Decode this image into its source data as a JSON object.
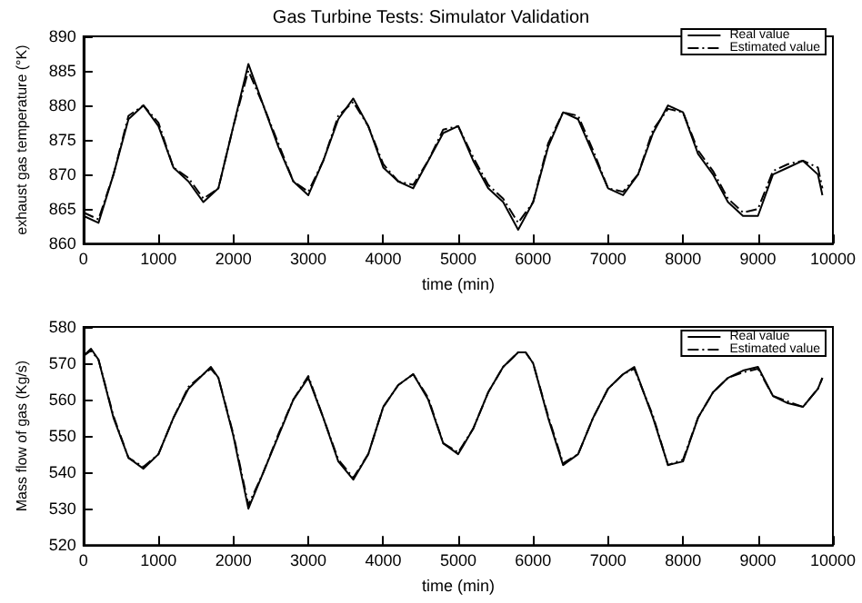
{
  "chart_data": [
    {
      "type": "line",
      "title": "Gas Turbine Tests: Simulator Validation",
      "xlabel": "time (min)",
      "ylabel": "exhaust gas temperature (°K)",
      "x": [
        0,
        200,
        400,
        600,
        800,
        1000,
        1200,
        1400,
        1600,
        1800,
        2000,
        2200,
        2400,
        2600,
        2800,
        3000,
        3200,
        3400,
        3600,
        3800,
        4000,
        4200,
        4400,
        4600,
        4800,
        5000,
        5200,
        5400,
        5600,
        5800,
        6000,
        6200,
        6400,
        6600,
        6800,
        7000,
        7200,
        7400,
        7600,
        7800,
        8000,
        8200,
        8400,
        8600,
        8800,
        9000,
        9200,
        9400,
        9600,
        9800,
        9860
      ],
      "series": [
        {
          "name": "Real value",
          "color": "#000000",
          "line_style": "solid",
          "values": [
            864,
            863,
            870,
            878,
            880,
            877,
            871,
            869,
            866,
            868,
            877,
            886,
            880,
            874,
            869,
            867,
            872,
            878,
            881,
            877,
            871,
            869,
            868,
            872,
            876,
            877,
            872,
            868,
            866,
            862,
            866,
            874,
            879,
            878,
            873,
            868,
            867,
            870,
            876,
            880,
            879,
            873,
            870,
            866,
            864,
            864,
            870,
            871,
            872,
            870,
            867
          ]
        },
        {
          "name": "Estimated value",
          "color": "#000000",
          "line_style": "dashed",
          "values": [
            864.5,
            863.5,
            870,
            878.5,
            880,
            877.5,
            871,
            869.5,
            866.5,
            868,
            877,
            885,
            880,
            874.5,
            869,
            867.5,
            872,
            878.5,
            880.5,
            877,
            871.5,
            869,
            868.5,
            872,
            876.5,
            877,
            872.5,
            868.5,
            866.5,
            863,
            866,
            874.5,
            879,
            878.5,
            873.5,
            868,
            867.5,
            870,
            876.5,
            879.5,
            879,
            873.5,
            870.5,
            866.5,
            864.5,
            865,
            870.5,
            871.5,
            872,
            871,
            868
          ]
        }
      ],
      "xlim": [
        0,
        10000
      ],
      "xticks": [
        0,
        1000,
        2000,
        3000,
        4000,
        5000,
        6000,
        7000,
        8000,
        9000,
        10000
      ],
      "ylim": [
        860,
        890
      ],
      "yticks": [
        860,
        865,
        870,
        875,
        880,
        885,
        890
      ],
      "grid": false,
      "legend": "top right",
      "marker": "none"
    },
    {
      "type": "line",
      "xlabel": "time (min)",
      "ylabel": "Mass flow of gas (Kg/s)",
      "x": [
        0,
        100,
        200,
        400,
        600,
        800,
        1000,
        1200,
        1400,
        1600,
        1700,
        1800,
        2000,
        2200,
        2400,
        2600,
        2800,
        3000,
        3200,
        3400,
        3600,
        3800,
        4000,
        4200,
        4400,
        4600,
        4800,
        5000,
        5200,
        5400,
        5600,
        5800,
        5900,
        6000,
        6200,
        6400,
        6600,
        6800,
        7000,
        7200,
        7350,
        7600,
        7800,
        8000,
        8200,
        8400,
        8600,
        8800,
        9000,
        9200,
        9400,
        9600,
        9800,
        9860
      ],
      "series": [
        {
          "name": "Real value",
          "color": "#000000",
          "line_style": "solid",
          "values": [
            572,
            574,
            571,
            555,
            544,
            541,
            545,
            555,
            563,
            567,
            569,
            566,
            550,
            530,
            540,
            550,
            560,
            566,
            555,
            543,
            538,
            545,
            558,
            564,
            567,
            560,
            548,
            545,
            552,
            562,
            569,
            573,
            573,
            570,
            555,
            542,
            545,
            555,
            563,
            567,
            569,
            555,
            542,
            543,
            555,
            562,
            566,
            568,
            569,
            561,
            559,
            558,
            563,
            566
          ]
        },
        {
          "name": "Estimated value",
          "color": "#000000",
          "line_style": "dashed",
          "values": [
            572,
            573.5,
            571,
            555.5,
            544,
            541.5,
            545,
            555,
            563.5,
            567,
            568.5,
            566,
            550.5,
            531,
            540,
            550.5,
            560,
            566.5,
            555,
            543.5,
            538.5,
            545,
            558,
            564,
            567,
            560.5,
            548,
            545.5,
            552,
            562,
            569,
            573,
            573,
            570,
            555.5,
            542.5,
            545,
            555,
            563,
            567,
            568.5,
            555.5,
            542,
            543.5,
            555,
            562,
            566,
            567.5,
            568.5,
            561,
            559.5,
            558,
            563,
            566
          ]
        }
      ],
      "xlim": [
        0,
        10000
      ],
      "xticks": [
        0,
        1000,
        2000,
        3000,
        4000,
        5000,
        6000,
        7000,
        8000,
        9000,
        10000
      ],
      "ylim": [
        520,
        580
      ],
      "yticks": [
        520,
        530,
        540,
        550,
        560,
        570,
        580
      ],
      "grid": false,
      "legend": "top right",
      "marker": "none"
    }
  ]
}
